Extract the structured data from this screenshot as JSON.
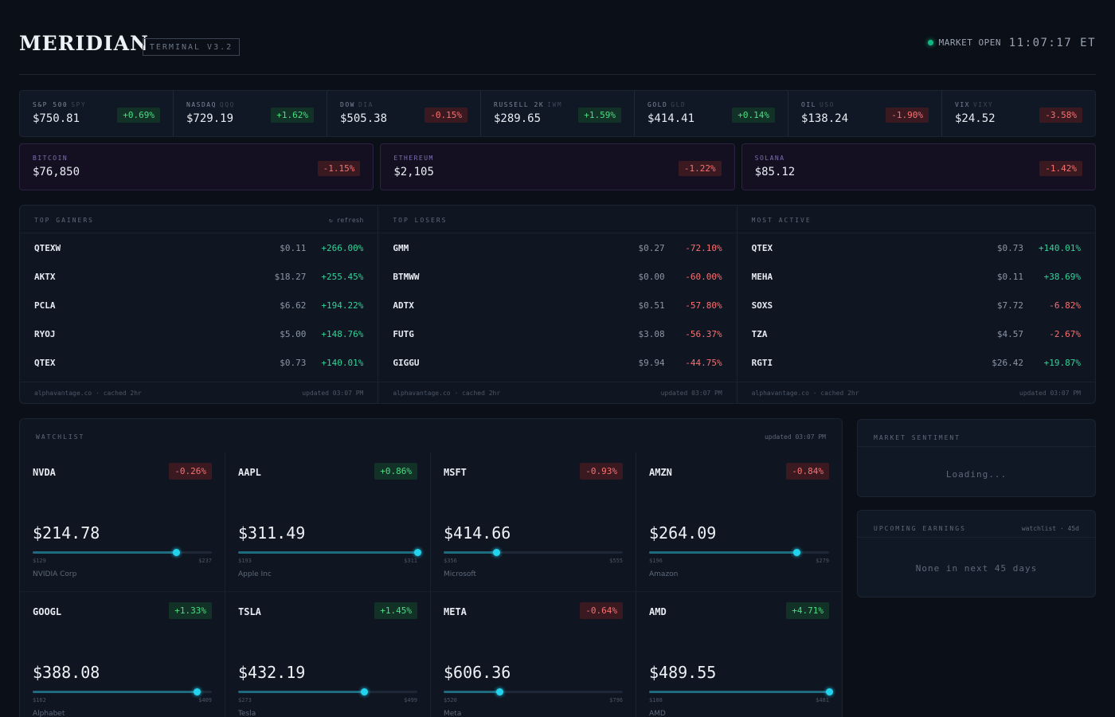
{
  "app": {
    "title": "MERIDIAN",
    "version": "TERMINAL V3.2",
    "market_status": "MARKET OPEN",
    "clock": "11:07:17 ET"
  },
  "indices": [
    {
      "label": "S&P 500",
      "ticker": "SPY",
      "price": "$750.81",
      "change": "+0.69%",
      "dir": "up"
    },
    {
      "label": "NASDAQ",
      "ticker": "QQQ",
      "price": "$729.19",
      "change": "+1.62%",
      "dir": "up"
    },
    {
      "label": "DOW",
      "ticker": "DIA",
      "price": "$505.38",
      "change": "-0.15%",
      "dir": "down"
    },
    {
      "label": "RUSSELL 2K",
      "ticker": "IWM",
      "price": "$289.65",
      "change": "+1.59%",
      "dir": "up"
    },
    {
      "label": "GOLD",
      "ticker": "GLD",
      "price": "$414.41",
      "change": "+0.14%",
      "dir": "up"
    },
    {
      "label": "OIL",
      "ticker": "USO",
      "price": "$138.24",
      "change": "-1.90%",
      "dir": "down"
    },
    {
      "label": "VIX",
      "ticker": "VIXY",
      "price": "$24.52",
      "change": "-3.58%",
      "dir": "down"
    }
  ],
  "crypto": [
    {
      "label": "BITCOIN",
      "price": "$76,850",
      "change": "-1.15%",
      "dir": "down"
    },
    {
      "label": "ETHEREUM",
      "price": "$2,105",
      "change": "-1.22%",
      "dir": "down"
    },
    {
      "label": "SOLANA",
      "price": "$85.12",
      "change": "-1.42%",
      "dir": "down"
    }
  ],
  "movers": [
    {
      "title": "TOP GAINERS",
      "action": "↻ refresh",
      "rows": [
        {
          "sym": "QTEXW",
          "price": "$0.11",
          "change": "+266.00%",
          "dir": "up"
        },
        {
          "sym": "AKTX",
          "price": "$18.27",
          "change": "+255.45%",
          "dir": "up"
        },
        {
          "sym": "PCLA",
          "price": "$6.62",
          "change": "+194.22%",
          "dir": "up"
        },
        {
          "sym": "RYOJ",
          "price": "$5.00",
          "change": "+148.76%",
          "dir": "up"
        },
        {
          "sym": "QTEX",
          "price": "$0.73",
          "change": "+140.01%",
          "dir": "up"
        }
      ],
      "source": "alphavantage.co · cached 2hr",
      "updated": "updated 03:07 PM"
    },
    {
      "title": "TOP LOSERS",
      "action": "",
      "rows": [
        {
          "sym": "GMM",
          "price": "$0.27",
          "change": "-72.10%",
          "dir": "down"
        },
        {
          "sym": "BTMWW",
          "price": "$0.00",
          "change": "-60.00%",
          "dir": "down"
        },
        {
          "sym": "ADTX",
          "price": "$0.51",
          "change": "-57.80%",
          "dir": "down"
        },
        {
          "sym": "FUTG",
          "price": "$3.08",
          "change": "-56.37%",
          "dir": "down"
        },
        {
          "sym": "GIGGU",
          "price": "$9.94",
          "change": "-44.75%",
          "dir": "down"
        }
      ],
      "source": "alphavantage.co · cached 2hr",
      "updated": "updated 03:07 PM"
    },
    {
      "title": "MOST ACTIVE",
      "action": "",
      "rows": [
        {
          "sym": "QTEX",
          "price": "$0.73",
          "change": "+140.01%",
          "dir": "up"
        },
        {
          "sym": "MEHA",
          "price": "$0.11",
          "change": "+38.69%",
          "dir": "up"
        },
        {
          "sym": "SOXS",
          "price": "$7.72",
          "change": "-6.82%",
          "dir": "down"
        },
        {
          "sym": "TZA",
          "price": "$4.57",
          "change": "-2.67%",
          "dir": "down"
        },
        {
          "sym": "RGTI",
          "price": "$26.42",
          "change": "+19.87%",
          "dir": "up"
        }
      ],
      "source": "alphavantage.co · cached 2hr",
      "updated": "updated 03:07 PM"
    }
  ],
  "watchlist": {
    "title": "WATCHLIST",
    "updated": "updated 03:07 PM",
    "items": [
      {
        "sym": "NVDA",
        "change": "-0.26%",
        "dir": "down",
        "price": "$214.78",
        "low": "$129",
        "high": "$237",
        "level": 0.802,
        "name": "NVIDIA Corp"
      },
      {
        "sym": "AAPL",
        "change": "+0.86%",
        "dir": "up",
        "price": "$311.49",
        "low": "$193",
        "high": "$311",
        "level": 1.0,
        "name": "Apple Inc"
      },
      {
        "sym": "MSFT",
        "change": "-0.93%",
        "dir": "down",
        "price": "$414.66",
        "low": "$356",
        "high": "$555",
        "level": 0.295,
        "name": "Microsoft"
      },
      {
        "sym": "AMZN",
        "change": "-0.84%",
        "dir": "down",
        "price": "$264.09",
        "low": "$196",
        "high": "$279",
        "level": 0.82,
        "name": "Amazon"
      },
      {
        "sym": "GOOGL",
        "change": "+1.33%",
        "dir": "up",
        "price": "$388.08",
        "low": "$162",
        "high": "$409",
        "level": 0.915,
        "name": "Alphabet"
      },
      {
        "sym": "TSLA",
        "change": "+1.45%",
        "dir": "up",
        "price": "$432.19",
        "low": "$273",
        "high": "$499",
        "level": 0.704,
        "name": "Tesla"
      },
      {
        "sym": "META",
        "change": "-0.64%",
        "dir": "down",
        "price": "$606.36",
        "low": "$520",
        "high": "$796",
        "level": 0.313,
        "name": "Meta"
      },
      {
        "sym": "AMD",
        "change": "+4.71%",
        "dir": "up",
        "price": "$489.55",
        "low": "$108",
        "high": "$481",
        "level": 1.0,
        "name": "AMD"
      }
    ]
  },
  "sentiment": {
    "title": "MARKET SENTIMENT",
    "body": "Loading..."
  },
  "earnings": {
    "title": "UPCOMING EARNINGS",
    "tag": "watchlist · 45d",
    "body": "None in next 45 days"
  },
  "colors": {
    "up": "#34d399",
    "down": "#f87171",
    "accent": "#22d3ee",
    "status": "#10b981"
  }
}
